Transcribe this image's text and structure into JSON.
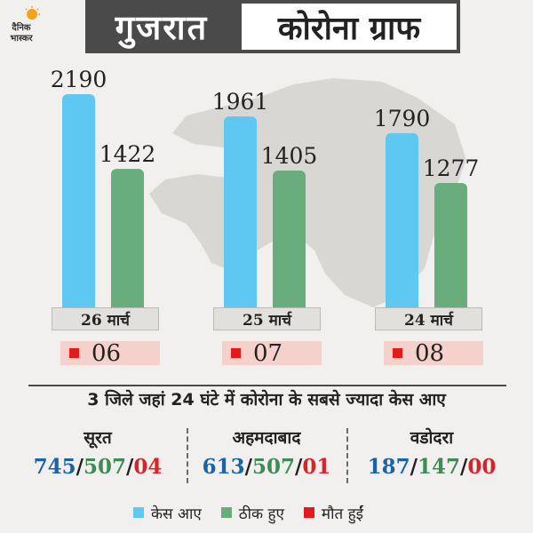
{
  "logo": {
    "line1": "दैनिक",
    "line2": "भास्कर"
  },
  "header": {
    "title_region": "गुजरात",
    "title_main": "कोरोना ग्राफ"
  },
  "colors": {
    "cases": "#5ec8f2",
    "recovered": "#6aad7d",
    "deaths": "#e11b1b"
  },
  "chart_data": {
    "type": "bar",
    "categories": [
      "26 मार्च",
      "25 मार्च",
      "24 मार्च"
    ],
    "series": [
      {
        "name": "केस आए",
        "values": [
          2190,
          1961,
          1790
        ]
      },
      {
        "name": "ठीक हुए",
        "values": [
          1422,
          1405,
          1277
        ]
      },
      {
        "name": "मौत हुईं",
        "values": [
          "06",
          "07",
          "08"
        ]
      }
    ],
    "title": "कोरोना ग्राफ",
    "xlabel": "",
    "ylabel": "",
    "legend": "bottom"
  },
  "subtitle": "3 जिले जहां 24 घंटे में कोरोना के सबसे ज्यादा केस आए",
  "cities": [
    {
      "name": "सूरत",
      "cases": "745",
      "recovered": "507",
      "deaths": "04"
    },
    {
      "name": "अहमदाबाद",
      "cases": "613",
      "recovered": "507",
      "deaths": "01"
    },
    {
      "name": "वडोदरा",
      "cases": "187",
      "recovered": "147",
      "deaths": "00"
    }
  ],
  "legend": {
    "cases": "केस आए",
    "recovered": "ठीक हुए",
    "deaths": "मौत हुईं"
  }
}
